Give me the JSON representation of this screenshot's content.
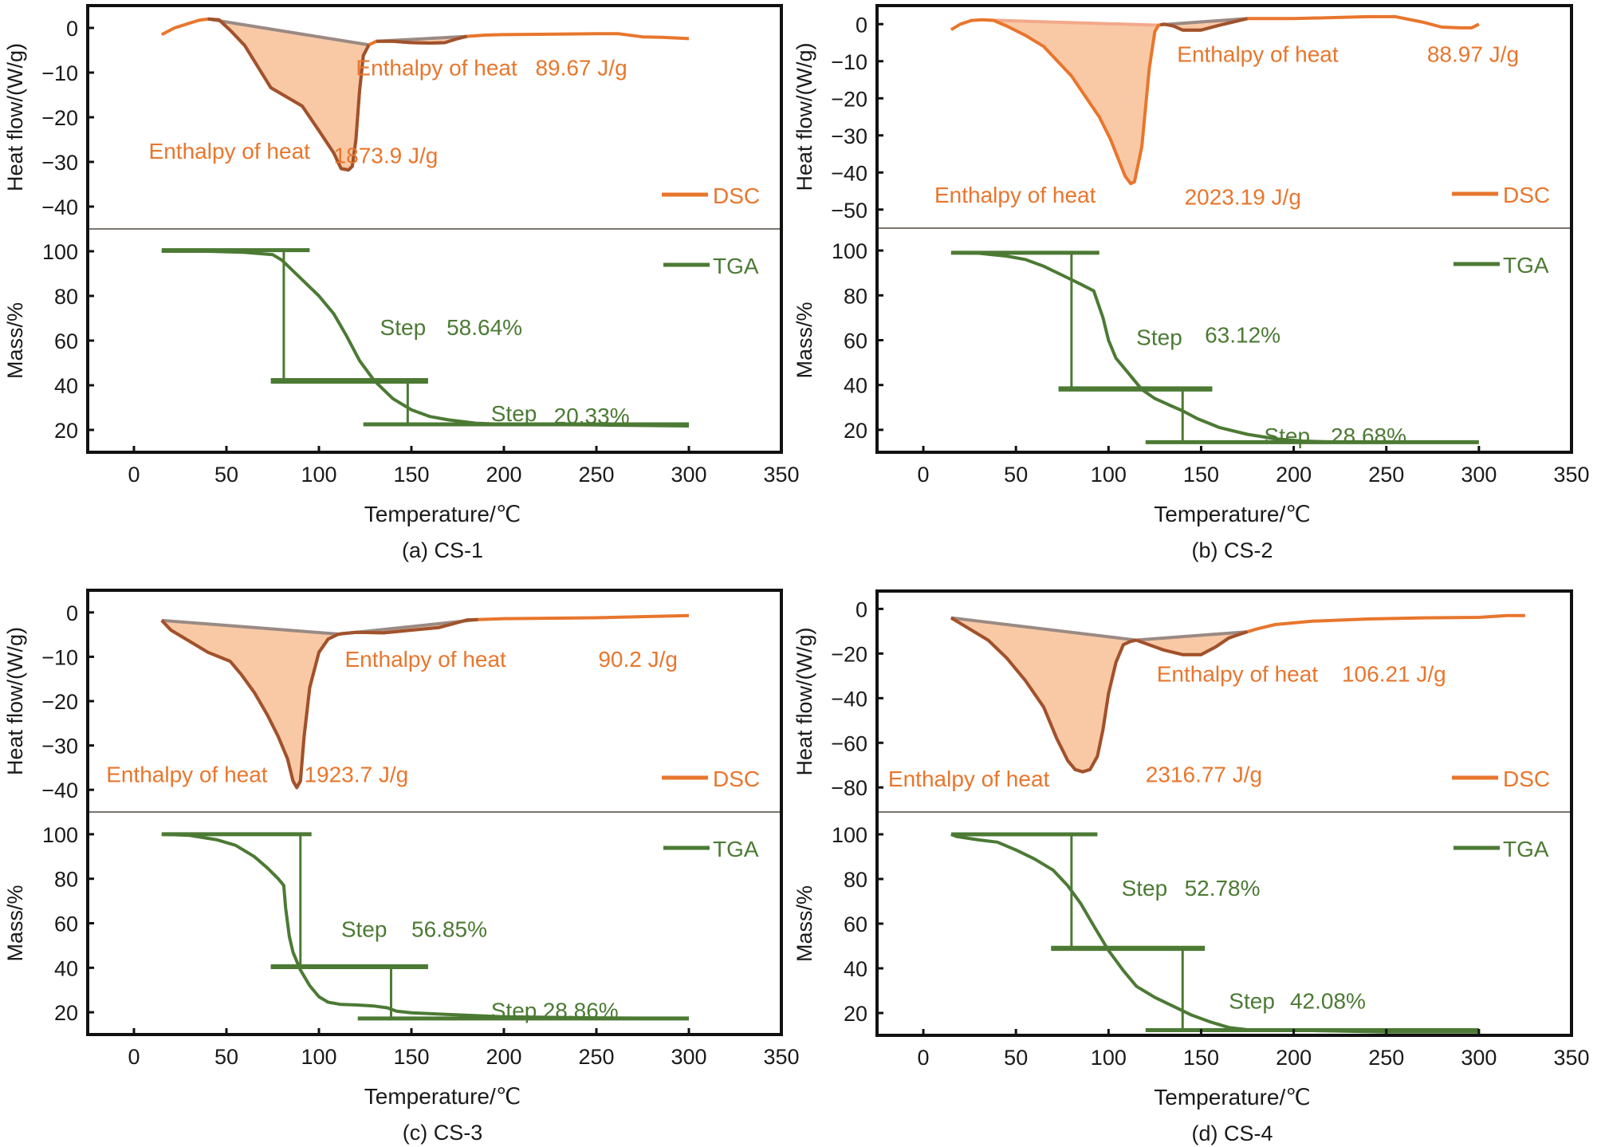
{
  "colors": {
    "dsc": "#E8762D",
    "dsc_dark": "#A0522D",
    "fill": "#F9C9A6",
    "baseline": "#9A8A84",
    "baseline_light": "#F2A98A",
    "tga": "#4C7A34",
    "axis": "#111111",
    "divider": "#7A756E"
  },
  "chart_data": [
    {
      "type": "line",
      "panel": "a",
      "caption": "(a) CS-1",
      "xlabel": "Temperature/℃",
      "xlim": [
        -25,
        350
      ],
      "x_ticks": [
        0,
        50,
        100,
        150,
        200,
        250,
        300,
        350
      ],
      "dsc": {
        "ylabel": "Heat flow/(W/g)",
        "ylim": [
          -45,
          5
        ],
        "y_ticks": [
          0,
          -10,
          -20,
          -30,
          -40
        ],
        "legend": "DSC",
        "series": {
          "name": "DSC",
          "x": [
            15,
            22,
            28,
            35,
            40,
            46,
            52,
            60,
            74,
            91,
            100,
            108,
            112,
            116,
            118,
            120,
            122,
            124,
            127,
            131,
            140,
            150,
            160,
            168,
            175,
            180,
            190,
            200,
            230,
            250,
            262,
            275,
            285,
            300
          ],
          "y": [
            -1.5,
            0,
            0.8,
            1.7,
            2.0,
            1.8,
            -0.5,
            -4,
            -13.4,
            -17.5,
            -23,
            -28,
            -31.5,
            -31.8,
            -31,
            -25,
            -14,
            -6.2,
            -3.8,
            -3,
            -3,
            -3.3,
            -3.4,
            -3.3,
            -2.4,
            -1.9,
            -1.6,
            -1.5,
            -1.4,
            -1.3,
            -1.3,
            -2,
            -2.1,
            -2.4
          ]
        },
        "peaks": [
          {
            "start": 40,
            "end": 127,
            "dark_outline": true
          },
          {
            "start": 131,
            "end": 180,
            "dark_outline": true
          }
        ],
        "annotations": [
          {
            "label": "Enthalpy of heat",
            "value": "1873.9 J/g",
            "label_x": 8,
            "label_y": -27.5,
            "value_x": 108,
            "value_y": -28.5
          },
          {
            "label": "Enthalpy of heat",
            "value": "89.67 J/g",
            "label_x": 120,
            "label_y": -8.8,
            "value_x": 217,
            "value_y": -8.8
          }
        ]
      },
      "tga": {
        "ylabel": "Mass/%",
        "ylim": [
          10,
          110
        ],
        "y_ticks": [
          20,
          40,
          60,
          80,
          100
        ],
        "legend": "TGA",
        "series": {
          "name": "TGA",
          "x": [
            15,
            40,
            60,
            75,
            80,
            90,
            100,
            108,
            115,
            122,
            130,
            140,
            150,
            160,
            170,
            185,
            200,
            250,
            300
          ],
          "y": [
            100,
            100,
            99.5,
            98.5,
            96,
            88,
            80,
            72,
            62,
            51,
            42,
            34,
            29,
            26,
            24.5,
            23,
            22.5,
            22.2,
            21.8
          ]
        },
        "steps": [
          {
            "label": "Step",
            "value": "58.64%",
            "x_vert": 81,
            "y_top": 100.5,
            "y_bottom": 42.3,
            "top_bar": [
              15,
              95
            ],
            "bottom_bar": [
              74,
              159
            ],
            "label_x": 133,
            "label_y": 66,
            "value_x": 169,
            "value_y": 66
          },
          {
            "label": "Step",
            "value": "20.33%",
            "x_vert": 148,
            "y_top": 41.6,
            "y_bottom": 22.5,
            "top_bar": [
              74,
              159
            ],
            "bottom_bar": [
              124,
              300
            ],
            "label_x": 193,
            "label_y": 27.5,
            "value_x": 227,
            "value_y": 26.5
          }
        ]
      }
    },
    {
      "type": "line",
      "panel": "b",
      "caption": "(b) CS-2",
      "xlabel": "Temperature/℃",
      "xlim": [
        -25,
        350
      ],
      "x_ticks": [
        0,
        50,
        100,
        150,
        200,
        250,
        300,
        350
      ],
      "dsc": {
        "ylabel": "Heat flow/(W/g)",
        "ylim": [
          -55,
          5
        ],
        "y_ticks": [
          0,
          -10,
          -20,
          -30,
          -40,
          -50
        ],
        "legend": "DSC",
        "series": {
          "name": "DSC",
          "x": [
            15,
            20,
            26,
            32,
            38,
            45,
            55,
            65,
            80,
            95,
            101,
            105,
            109,
            112,
            114,
            118,
            122,
            125,
            127,
            130,
            135,
            140,
            150,
            160,
            175,
            200,
            240,
            255,
            270,
            280,
            290,
            296,
            300
          ],
          "y": [
            -1.5,
            0,
            1,
            1.2,
            1,
            -0.5,
            -3,
            -6,
            -14,
            -25,
            -31,
            -36,
            -41,
            -43,
            -42.5,
            -33,
            -12,
            -2,
            -0.3,
            0,
            -0.5,
            -1.6,
            -1.6,
            -0.3,
            1.5,
            1.5,
            2,
            2,
            0.5,
            -0.8,
            -1,
            -1,
            0
          ]
        },
        "peaks": [
          {
            "start": 35,
            "end": 127,
            "dark_outline": false
          },
          {
            "start": 128,
            "end": 175,
            "dark_outline": true
          }
        ],
        "annotations": [
          {
            "label": "Enthalpy of heat",
            "value": "2023.19 J/g",
            "label_x": 6,
            "label_y": -46,
            "value_x": 141,
            "value_y": -46.5
          },
          {
            "label": "Enthalpy of heat",
            "value": "88.97 J/g",
            "label_x": 137,
            "label_y": -8,
            "value_x": 272,
            "value_y": -8
          }
        ]
      },
      "tga": {
        "ylabel": "Mass/%",
        "ylim": [
          10,
          110
        ],
        "y_ticks": [
          20,
          40,
          60,
          80,
          100
        ],
        "legend": "TGA",
        "series": {
          "name": "TGA",
          "x": [
            15,
            30,
            45,
            55,
            65,
            75,
            85,
            92,
            97,
            100,
            104,
            110,
            118,
            125,
            133,
            140,
            148,
            160,
            175,
            190,
            205,
            225,
            240
          ],
          "y": [
            99,
            98.8,
            97.5,
            96,
            93,
            89,
            85,
            82,
            70,
            60,
            52,
            46,
            38,
            34,
            31,
            28.5,
            25,
            21,
            18,
            16,
            15,
            14.5,
            14.5
          ]
        },
        "steps": [
          {
            "label": "Step",
            "value": "63.12%",
            "x_vert": 80,
            "y_top": 99,
            "y_bottom": 38.5,
            "top_bar": [
              15,
              95
            ],
            "bottom_bar": [
              73,
              156
            ],
            "label_x": 115,
            "label_y": 61.5,
            "value_x": 152,
            "value_y": 62.5
          },
          {
            "label": "Step",
            "value": "28.68%",
            "x_vert": 140,
            "y_top": 38,
            "y_bottom": 14.5,
            "top_bar": [
              73,
              156
            ],
            "bottom_bar": [
              120,
              300
            ],
            "label_x": 184,
            "label_y": 17.5,
            "value_x": 220,
            "value_y": 17.5
          }
        ]
      }
    },
    {
      "type": "line",
      "panel": "c",
      "caption": "(c) CS-3",
      "xlabel": "Temperature/℃",
      "xlim": [
        -25,
        350
      ],
      "x_ticks": [
        0,
        50,
        100,
        150,
        200,
        250,
        300,
        350
      ],
      "dsc": {
        "ylabel": "Heat flow/(W/g)",
        "ylim": [
          -45,
          5
        ],
        "y_ticks": [
          0,
          -10,
          -20,
          -30,
          -40
        ],
        "legend": "DSC",
        "series": {
          "name": "DSC",
          "x": [
            15,
            20,
            30,
            40,
            46,
            52,
            58,
            65,
            72,
            78,
            83,
            86,
            88,
            90,
            92,
            95,
            100,
            105,
            110,
            112,
            120,
            135,
            150,
            165,
            180,
            200,
            250,
            300
          ],
          "y": [
            -1.8,
            -4,
            -6.5,
            -9,
            -10,
            -11,
            -14,
            -18,
            -23,
            -28,
            -33,
            -38,
            -39.5,
            -38,
            -28,
            -17,
            -9,
            -6,
            -5,
            -4.8,
            -4.5,
            -4.6,
            -4,
            -3.4,
            -1.7,
            -1.4,
            -1.2,
            -0.7
          ]
        },
        "peaks": [
          {
            "start": 15,
            "end": 111,
            "dark_outline": true
          },
          {
            "start": 111,
            "end": 186,
            "dark_outline": true
          }
        ],
        "annotations": [
          {
            "label": "Enthalpy of heat",
            "value": "1923.7 J/g",
            "label_x": -15,
            "label_y": -36.5,
            "value_x": 92,
            "value_y": -36.5
          },
          {
            "label": "Enthalpy of heat",
            "value": "90.2 J/g",
            "label_x": 114,
            "label_y": -10.5,
            "value_x": 251,
            "value_y": -10.5
          }
        ]
      },
      "tga": {
        "ylabel": "Mass/%",
        "ylim": [
          10,
          110
        ],
        "y_ticks": [
          20,
          40,
          60,
          80,
          100
        ],
        "legend": "TGA",
        "series": {
          "name": "TGA",
          "x": [
            15,
            30,
            45,
            55,
            65,
            72,
            78,
            81,
            82,
            84,
            86,
            90,
            95,
            100,
            105,
            112,
            120,
            130,
            137,
            142,
            150,
            170,
            200,
            250,
            300
          ],
          "y": [
            100,
            99.5,
            97.5,
            95,
            90,
            85,
            80,
            77,
            67,
            54,
            47,
            39,
            32,
            27,
            24.5,
            23.5,
            23.3,
            22.8,
            22,
            20.5,
            19.8,
            19,
            18,
            17.5,
            17.2
          ]
        },
        "steps": [
          {
            "label": "Step",
            "value": "56.85%",
            "x_vert": 90,
            "y_top": 100,
            "y_bottom": 40.7,
            "top_bar": [
              15,
              96
            ],
            "bottom_bar": [
              74,
              159
            ],
            "label_x": 112,
            "label_y": 57.5,
            "value_x": 150,
            "value_y": 57.5
          },
          {
            "label": "Step",
            "value": "28.86%",
            "x_vert": 139,
            "y_top": 40.3,
            "y_bottom": 17.2,
            "top_bar": [
              74,
              159
            ],
            "bottom_bar": [
              121,
              300
            ],
            "label_x": 193,
            "label_y": 21,
            "value_x": 221,
            "value_y": 21
          }
        ]
      }
    },
    {
      "type": "line",
      "panel": "d",
      "caption": "(d) CS-4",
      "xlabel": "Temperature/℃",
      "xlim": [
        -25,
        350
      ],
      "x_ticks": [
        0,
        50,
        100,
        150,
        200,
        250,
        300,
        350
      ],
      "dsc": {
        "ylabel": "Heat flow/(W/g)",
        "ylim": [
          -91,
          8
        ],
        "y_ticks": [
          0,
          -20,
          -40,
          -60,
          -80
        ],
        "legend": "DSC",
        "series": {
          "name": "DSC",
          "x": [
            15,
            25,
            35,
            45,
            55,
            65,
            72,
            78,
            82,
            86,
            90,
            94,
            97,
            100,
            104,
            108,
            112,
            115,
            120,
            130,
            140,
            150,
            158,
            165,
            172,
            180,
            190,
            210,
            240,
            270,
            300,
            315,
            325
          ],
          "y": [
            -4,
            -9,
            -14,
            -22,
            -32,
            -44,
            -58,
            -68,
            -72,
            -73,
            -72,
            -66,
            -54,
            -38,
            -24,
            -16,
            -14.5,
            -14,
            -15.5,
            -18.5,
            -20.5,
            -20.5,
            -17,
            -13,
            -11,
            -9,
            -7,
            -5.5,
            -4.5,
            -4,
            -3.8,
            -3,
            -3
          ]
        },
        "peaks": [
          {
            "start": 15,
            "end": 115,
            "dark_outline": true
          },
          {
            "start": 115,
            "end": 175,
            "dark_outline": true
          }
        ],
        "annotations": [
          {
            "label": "Enthalpy of heat",
            "value": "2316.77 J/g",
            "label_x": -19,
            "label_y": -76,
            "value_x": 120,
            "value_y": -74
          },
          {
            "label": "Enthalpy of heat",
            "value": "106.21 J/g",
            "label_x": 126,
            "label_y": -29,
            "value_x": 226,
            "value_y": -29
          }
        ]
      },
      "tga": {
        "ylabel": "Mass/%",
        "ylim": [
          10,
          110
        ],
        "y_ticks": [
          20,
          40,
          60,
          80,
          100
        ],
        "legend": "TGA",
        "series": {
          "name": "TGA",
          "x": [
            15,
            18,
            30,
            40,
            50,
            60,
            70,
            78,
            85,
            92,
            100,
            108,
            115,
            125,
            135,
            145,
            155,
            165,
            175,
            200,
            250,
            300
          ],
          "y": [
            100,
            99,
            97.5,
            96.5,
            93,
            89,
            84,
            77,
            69,
            59,
            48,
            39,
            32,
            27,
            23,
            19,
            16,
            13.5,
            12.5,
            12.3,
            11.5,
            11.5
          ]
        },
        "steps": [
          {
            "label": "Step",
            "value": "52.78%",
            "x_vert": 80,
            "y_top": 100,
            "y_bottom": 49.2,
            "top_bar": [
              15,
              94
            ],
            "bottom_bar": [
              69,
              152
            ],
            "label_x": 107,
            "label_y": 76,
            "value_x": 141,
            "value_y": 76
          },
          {
            "label": "Step",
            "value": "42.08%",
            "x_vert": 140,
            "y_top": 48.7,
            "y_bottom": 12.3,
            "top_bar": [
              69,
              152
            ],
            "bottom_bar": [
              120,
              300
            ],
            "label_x": 165,
            "label_y": 25.5,
            "value_x": 198,
            "value_y": 25.5
          }
        ]
      }
    }
  ]
}
